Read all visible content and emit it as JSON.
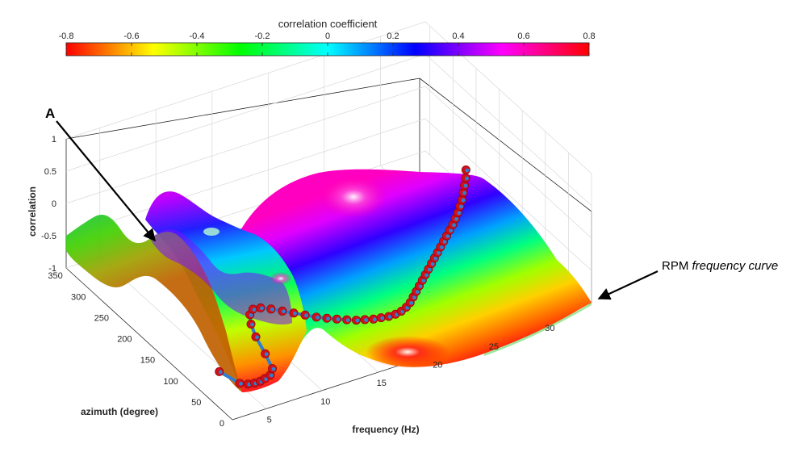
{
  "chart_data": {
    "type": "surface",
    "title": "",
    "colorbar": {
      "title": "correlation coefficient",
      "range": [
        -0.8,
        0.8
      ],
      "ticks": [
        "-0.8",
        "-0.6",
        "-0.4",
        "-0.2",
        "0",
        "0.2",
        "0.4",
        "0.6",
        "0.8"
      ],
      "colormap": "hsv",
      "placement": "top"
    },
    "xlabel": "frequency (Hz)",
    "ylabel": "azimuth (degree)",
    "zlabel": "correlation",
    "xlim": [
      2,
      34
    ],
    "ylim": [
      0,
      360
    ],
    "zlim": [
      -1,
      1
    ],
    "x_ticks": [
      "5",
      "10",
      "15",
      "20",
      "25",
      "30"
    ],
    "y_ticks": [
      "0",
      "50",
      "100",
      "150",
      "200",
      "250",
      "300",
      "350"
    ],
    "z_ticks": [
      "-1",
      "-0.5",
      "0",
      "0.5",
      "1"
    ],
    "grid": true,
    "rpm_curve": {
      "label_prefix": "RPM ",
      "label_italic": "frequency curve",
      "x": [
        3.3,
        3.8,
        4.3,
        4.8,
        5.3,
        5.8,
        6.4,
        7.0,
        7.6,
        8.2,
        8.8,
        9.4,
        10.0,
        10.6,
        11.2,
        11.8,
        12.4,
        13.0,
        13.6,
        14.2,
        14.8,
        15.4,
        16.0,
        16.6,
        17.2,
        17.8,
        18.4,
        19.0,
        19.6,
        20.2,
        20.8,
        21.4,
        22.0,
        22.6,
        23.2,
        23.8,
        24.4,
        25.0,
        25.6,
        26.2,
        26.8,
        27.4,
        28.0,
        28.6,
        29.2,
        29.8,
        30.4,
        31.0,
        31.6,
        32.2,
        32.8,
        33.4,
        34.0
      ],
      "y": [
        60,
        28,
        22,
        20,
        20,
        22,
        25,
        35,
        65,
        100,
        125,
        142,
        150,
        148,
        140,
        130,
        120,
        110,
        100,
        92,
        85,
        78,
        72,
        68,
        64,
        62,
        60,
        60,
        62,
        66,
        72,
        80,
        88,
        96,
        104,
        112,
        120,
        128,
        136,
        144,
        152,
        160,
        168,
        176,
        184,
        193,
        202,
        212,
        222,
        234,
        246,
        258,
        272
      ]
    },
    "annotations": [
      "A",
      "RPM frequency curve"
    ]
  }
}
